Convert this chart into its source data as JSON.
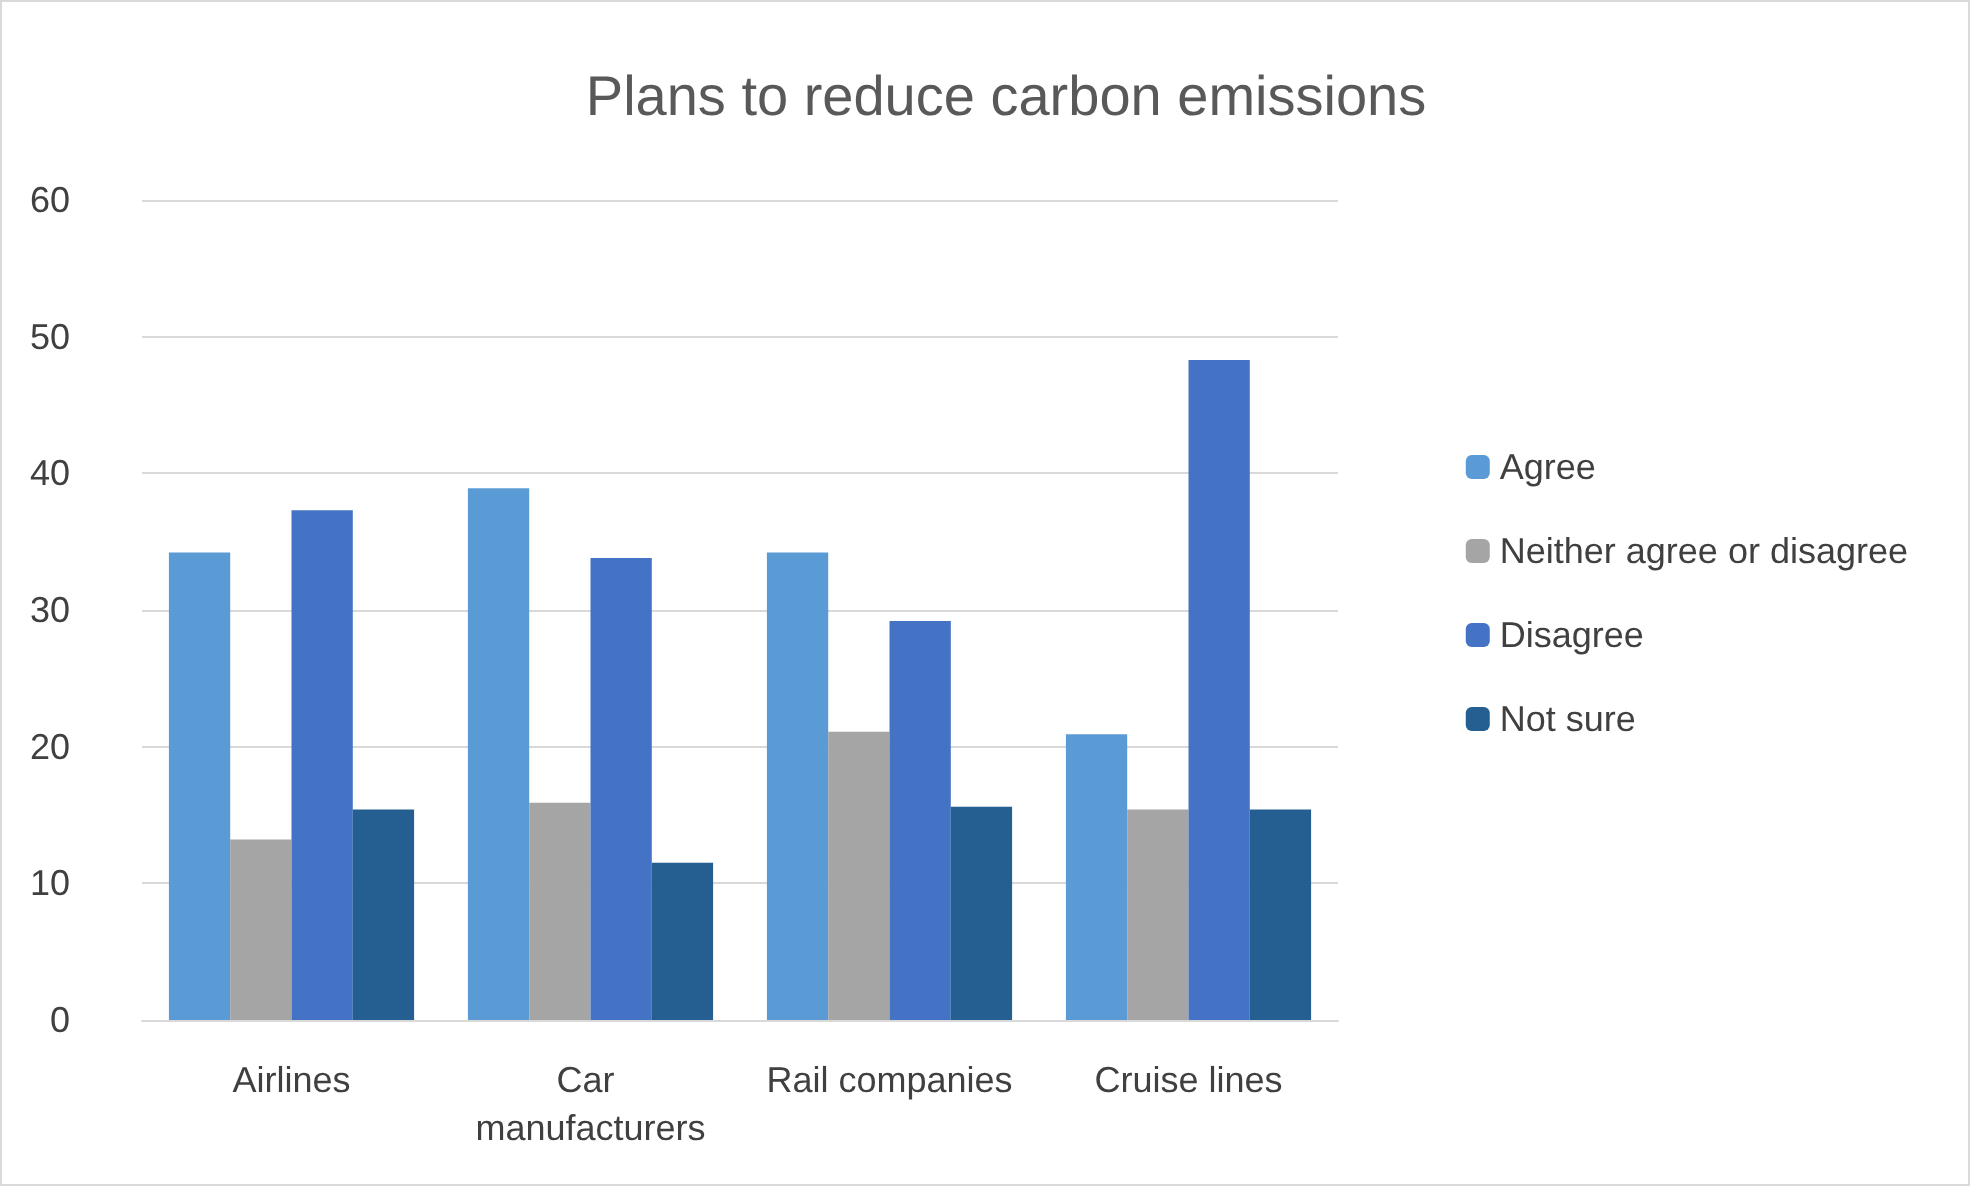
{
  "chart_data": {
    "type": "bar",
    "title": "Plans to reduce carbon emissions",
    "categories": [
      "Airlines",
      "Car manufacturers",
      "Rail companies",
      "Cruise lines"
    ],
    "series": [
      {
        "name": "Agree",
        "color": "#5b9bd5",
        "values": [
          34.2,
          38.9,
          34.2,
          20.9
        ]
      },
      {
        "name": "Neither agree or disagree",
        "color": "#a5a5a5",
        "values": [
          13.2,
          15.9,
          21.1,
          15.4
        ]
      },
      {
        "name": "Disagree",
        "color": "#4472c4",
        "values": [
          37.3,
          33.8,
          29.2,
          48.3
        ]
      },
      {
        "name": "Not sure",
        "color": "#255e91",
        "values": [
          15.4,
          11.5,
          15.6,
          15.4
        ]
      }
    ],
    "ylim": [
      0,
      60
    ],
    "yticks": [
      0,
      10,
      20,
      30,
      40,
      50,
      60
    ],
    "grid": "y",
    "legend": "right"
  }
}
